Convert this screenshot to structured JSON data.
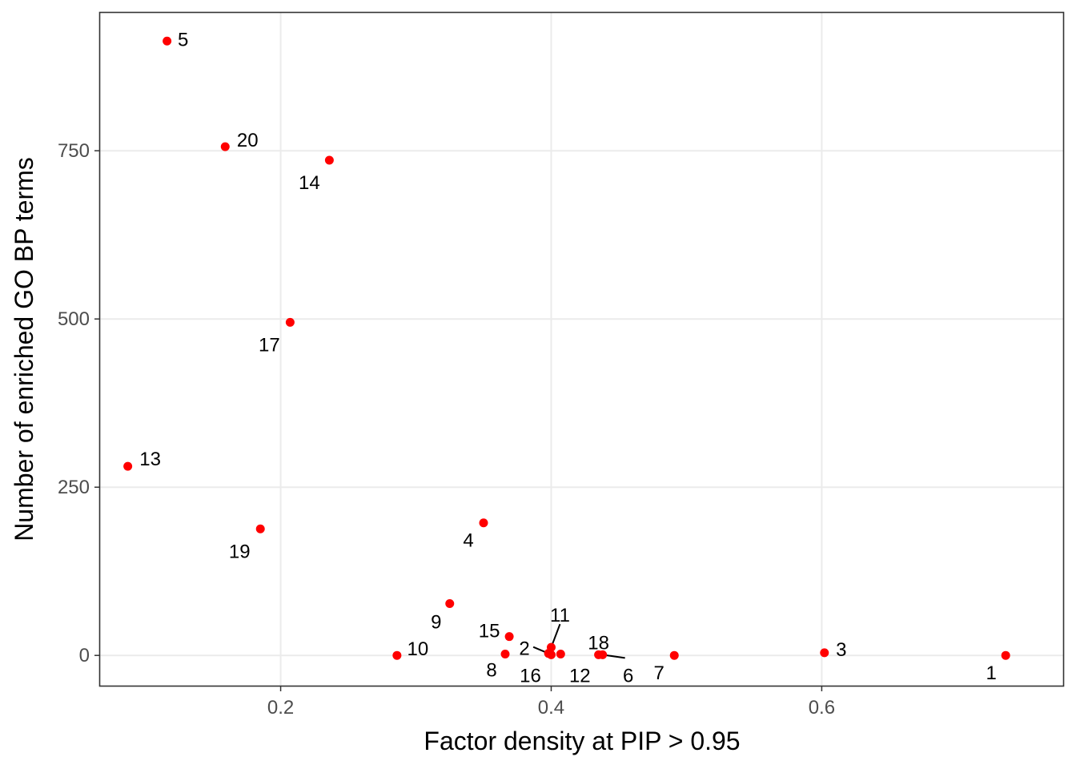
{
  "chart_data": {
    "type": "scatter",
    "title": "",
    "xlabel": "Factor density at PIP > 0.95",
    "ylabel": "Number of enriched GO BP terms",
    "xlim": [
      0.0665,
      0.7785
    ],
    "ylim": [
      -45,
      955
    ],
    "x_ticks": [
      0.2,
      0.4,
      0.6
    ],
    "x_tick_labels": [
      "0.2",
      "0.4",
      "0.6"
    ],
    "y_ticks": [
      0,
      250,
      500,
      750
    ],
    "y_tick_labels": [
      "0",
      "250",
      "500",
      "750"
    ],
    "grid": true,
    "point_color": "#ff0000",
    "points": [
      {
        "label": "5",
        "x": 0.116,
        "y": 913
      },
      {
        "label": "20",
        "x": 0.159,
        "y": 756
      },
      {
        "label": "14",
        "x": 0.236,
        "y": 736
      },
      {
        "label": "17",
        "x": 0.207,
        "y": 495
      },
      {
        "label": "13",
        "x": 0.087,
        "y": 281
      },
      {
        "label": "19",
        "x": 0.185,
        "y": 188
      },
      {
        "label": "4",
        "x": 0.35,
        "y": 197
      },
      {
        "label": "9",
        "x": 0.325,
        "y": 77
      },
      {
        "label": "15",
        "x": 0.369,
        "y": 28
      },
      {
        "label": "11",
        "x": 0.4,
        "y": 12
      },
      {
        "label": "2",
        "x": 0.398,
        "y": 3
      },
      {
        "label": "8",
        "x": 0.366,
        "y": 2
      },
      {
        "label": "16",
        "x": 0.4,
        "y": 1
      },
      {
        "label": "12",
        "x": 0.407,
        "y": 2
      },
      {
        "label": "18",
        "x": 0.435,
        "y": 1
      },
      {
        "label": "6",
        "x": 0.438,
        "y": 1
      },
      {
        "label": "10",
        "x": 0.286,
        "y": 0
      },
      {
        "label": "7",
        "x": 0.491,
        "y": 0
      },
      {
        "label": "3",
        "x": 0.602,
        "y": 4
      },
      {
        "label": "1",
        "x": 0.736,
        "y": 0
      }
    ]
  }
}
